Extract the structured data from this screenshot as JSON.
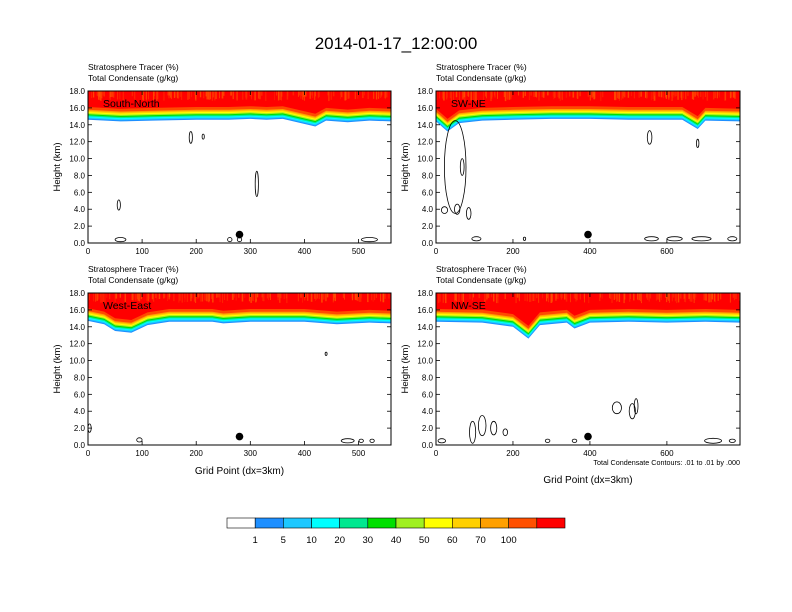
{
  "title": "2014-01-17_12:00:00",
  "chart_data": [
    {
      "type": "heatmap",
      "panel_label": "South-North",
      "header_lines": [
        "Stratosphere Tracer   (%)",
        "Total Condensate   (g/kg)"
      ],
      "ylabel": "Height (km)",
      "xlabel": "",
      "xlim": [
        0,
        560
      ],
      "ylim": [
        0,
        18
      ],
      "xticks": [
        0,
        100,
        200,
        300,
        400,
        500
      ],
      "yticks": [
        "0.0",
        "2.0",
        "4.0",
        "6.0",
        "8.0",
        "10.0",
        "12.0",
        "14.0",
        "16.0",
        "18.0"
      ],
      "tracer_bottom_km": [
        [
          0,
          14.6
        ],
        [
          60,
          14.4
        ],
        [
          120,
          14.5
        ],
        [
          200,
          14.6
        ],
        [
          260,
          14.6
        ],
        [
          300,
          14.7
        ],
        [
          330,
          14.6
        ],
        [
          360,
          14.7
        ],
        [
          420,
          13.8
        ],
        [
          440,
          14.5
        ],
        [
          480,
          14.3
        ],
        [
          520,
          14.5
        ],
        [
          560,
          14.4
        ]
      ],
      "marker": {
        "x": 280,
        "y": 1.0
      },
      "condensate_contours": [
        {
          "x": 57,
          "y": 4.5,
          "rx": 3,
          "ry": 0.6
        },
        {
          "x": 190,
          "y": 12.5,
          "rx": 3,
          "ry": 0.7
        },
        {
          "x": 213,
          "y": 12.6,
          "rx": 2,
          "ry": 0.3
        },
        {
          "x": 312,
          "y": 7.0,
          "rx": 3,
          "ry": 1.5
        },
        {
          "x": 60,
          "y": 0.4,
          "rx": 10,
          "ry": 0.25
        },
        {
          "x": 262,
          "y": 0.4,
          "rx": 4,
          "ry": 0.25
        },
        {
          "x": 280,
          "y": 0.4,
          "rx": 4,
          "ry": 0.25
        },
        {
          "x": 520,
          "y": 0.4,
          "rx": 15,
          "ry": 0.25
        }
      ]
    },
    {
      "type": "heatmap",
      "panel_label": "SW-NE",
      "header_lines": [
        "Stratosphere Tracer   (%)",
        "Total Condensate   (g/kg)"
      ],
      "ylabel": "Height (km)",
      "xlabel": "",
      "xlim": [
        0,
        790
      ],
      "ylim": [
        0,
        18
      ],
      "xticks": [
        0,
        200,
        400,
        600
      ],
      "yticks": [
        "0.0",
        "2.0",
        "4.0",
        "6.0",
        "8.0",
        "10.0",
        "12.0",
        "14.0",
        "16.0",
        "18.0"
      ],
      "tracer_bottom_km": [
        [
          0,
          14.4
        ],
        [
          30,
          13.2
        ],
        [
          60,
          14.2
        ],
        [
          120,
          14.5
        ],
        [
          200,
          14.6
        ],
        [
          300,
          14.7
        ],
        [
          400,
          14.7
        ],
        [
          500,
          14.6
        ],
        [
          640,
          14.6
        ],
        [
          680,
          13.5
        ],
        [
          700,
          14.5
        ],
        [
          790,
          14.4
        ]
      ],
      "marker": {
        "x": 395,
        "y": 1.0
      },
      "condensate_contours": [
        {
          "x": 50,
          "y": 9.0,
          "rx": 28,
          "ry": 5.5
        },
        {
          "x": 68,
          "y": 9.0,
          "rx": 5,
          "ry": 1.0
        },
        {
          "x": 22,
          "y": 3.9,
          "rx": 8,
          "ry": 0.4
        },
        {
          "x": 55,
          "y": 4.0,
          "rx": 7,
          "ry": 0.6
        },
        {
          "x": 85,
          "y": 3.5,
          "rx": 6,
          "ry": 0.7
        },
        {
          "x": 555,
          "y": 12.5,
          "rx": 6,
          "ry": 0.8
        },
        {
          "x": 680,
          "y": 11.8,
          "rx": 3,
          "ry": 0.5
        },
        {
          "x": 105,
          "y": 0.5,
          "rx": 12,
          "ry": 0.25
        },
        {
          "x": 230,
          "y": 0.5,
          "rx": 3,
          "ry": 0.2
        },
        {
          "x": 560,
          "y": 0.5,
          "rx": 18,
          "ry": 0.25
        },
        {
          "x": 620,
          "y": 0.5,
          "rx": 20,
          "ry": 0.25
        },
        {
          "x": 690,
          "y": 0.5,
          "rx": 25,
          "ry": 0.25
        },
        {
          "x": 770,
          "y": 0.5,
          "rx": 12,
          "ry": 0.25
        }
      ]
    },
    {
      "type": "heatmap",
      "panel_label": "West-East",
      "header_lines": [
        "Stratosphere Tracer   (%)",
        "Total Condensate   (g/kg)"
      ],
      "ylabel": "Height (km)",
      "xlabel": "Grid Point (dx=3km)",
      "xlim": [
        0,
        560
      ],
      "ylim": [
        0,
        18
      ],
      "xticks": [
        0,
        100,
        200,
        300,
        400,
        500
      ],
      "yticks": [
        "0.0",
        "2.0",
        "4.0",
        "6.0",
        "8.0",
        "10.0",
        "12.0",
        "14.0",
        "16.0",
        "18.0"
      ],
      "tracer_bottom_km": [
        [
          0,
          14.7
        ],
        [
          30,
          14.3
        ],
        [
          50,
          13.5
        ],
        [
          80,
          13.3
        ],
        [
          110,
          14.2
        ],
        [
          150,
          14.6
        ],
        [
          230,
          14.6
        ],
        [
          250,
          14.4
        ],
        [
          300,
          14.6
        ],
        [
          400,
          14.6
        ],
        [
          460,
          14.3
        ],
        [
          520,
          14.5
        ],
        [
          560,
          14.4
        ]
      ],
      "marker": {
        "x": 280,
        "y": 1.0
      },
      "condensate_contours": [
        {
          "x": 440,
          "y": 10.8,
          "rx": 1.5,
          "ry": 0.2
        },
        {
          "x": 95,
          "y": 0.6,
          "rx": 5,
          "ry": 0.25
        },
        {
          "x": 3,
          "y": 2.0,
          "rx": 3,
          "ry": 0.5
        },
        {
          "x": 480,
          "y": 0.5,
          "rx": 12,
          "ry": 0.25
        },
        {
          "x": 505,
          "y": 0.5,
          "rx": 4,
          "ry": 0.2
        },
        {
          "x": 525,
          "y": 0.5,
          "rx": 4,
          "ry": 0.2
        }
      ]
    },
    {
      "type": "heatmap",
      "panel_label": "NW-SE",
      "header_lines": [
        "Stratosphere Tracer   (%)",
        "Total Condensate   (g/kg)"
      ],
      "ylabel": "Height (km)",
      "xlabel": "Grid Point (dx=3km)",
      "footnote": "Total Condensate Contours: .01 to .01 by .000",
      "xlim": [
        0,
        790
      ],
      "ylim": [
        0,
        18
      ],
      "xticks": [
        0,
        200,
        400,
        600
      ],
      "yticks": [
        "0.0",
        "2.0",
        "4.0",
        "6.0",
        "8.0",
        "10.0",
        "12.0",
        "14.0",
        "16.0",
        "18.0"
      ],
      "tracer_bottom_km": [
        [
          0,
          14.6
        ],
        [
          120,
          14.5
        ],
        [
          200,
          14.0
        ],
        [
          240,
          12.6
        ],
        [
          270,
          14.2
        ],
        [
          340,
          14.5
        ],
        [
          360,
          13.8
        ],
        [
          400,
          14.5
        ],
        [
          500,
          14.6
        ],
        [
          600,
          14.5
        ],
        [
          700,
          14.6
        ],
        [
          790,
          14.5
        ]
      ],
      "marker": {
        "x": 395,
        "y": 1.0
      },
      "condensate_contours": [
        {
          "x": 95,
          "y": 1.5,
          "rx": 8,
          "ry": 1.3
        },
        {
          "x": 120,
          "y": 2.3,
          "rx": 10,
          "ry": 1.2
        },
        {
          "x": 150,
          "y": 2.0,
          "rx": 8,
          "ry": 0.8
        },
        {
          "x": 180,
          "y": 1.5,
          "rx": 6,
          "ry": 0.4
        },
        {
          "x": 470,
          "y": 4.4,
          "rx": 12,
          "ry": 0.7
        },
        {
          "x": 510,
          "y": 4.0,
          "rx": 8,
          "ry": 0.9
        },
        {
          "x": 520,
          "y": 4.6,
          "rx": 5,
          "ry": 0.9
        },
        {
          "x": 15,
          "y": 0.5,
          "rx": 10,
          "ry": 0.25
        },
        {
          "x": 290,
          "y": 0.5,
          "rx": 6,
          "ry": 0.2
        },
        {
          "x": 360,
          "y": 0.5,
          "rx": 6,
          "ry": 0.2
        },
        {
          "x": 720,
          "y": 0.5,
          "rx": 22,
          "ry": 0.3
        },
        {
          "x": 770,
          "y": 0.5,
          "rx": 8,
          "ry": 0.2
        }
      ]
    }
  ],
  "colorbar": {
    "labels": [
      "1",
      "5",
      "10",
      "20",
      "30",
      "40",
      "50",
      "60",
      "70",
      "100"
    ],
    "colors": [
      "#ffffff",
      "#1e8fff",
      "#1ec8ff",
      "#00ffff",
      "#00e890",
      "#00e000",
      "#a0f020",
      "#ffff00",
      "#ffd000",
      "#ffa000",
      "#ff5000",
      "#ff0000"
    ]
  },
  "band_colors": {
    "strat": "#ff0000",
    "layers": [
      "#ff4a00",
      "#ffa000",
      "#ffd000",
      "#ffff00",
      "#a0f020",
      "#00e000",
      "#00e890",
      "#00ffff",
      "#1ec8ff",
      "#1e8fff"
    ]
  }
}
